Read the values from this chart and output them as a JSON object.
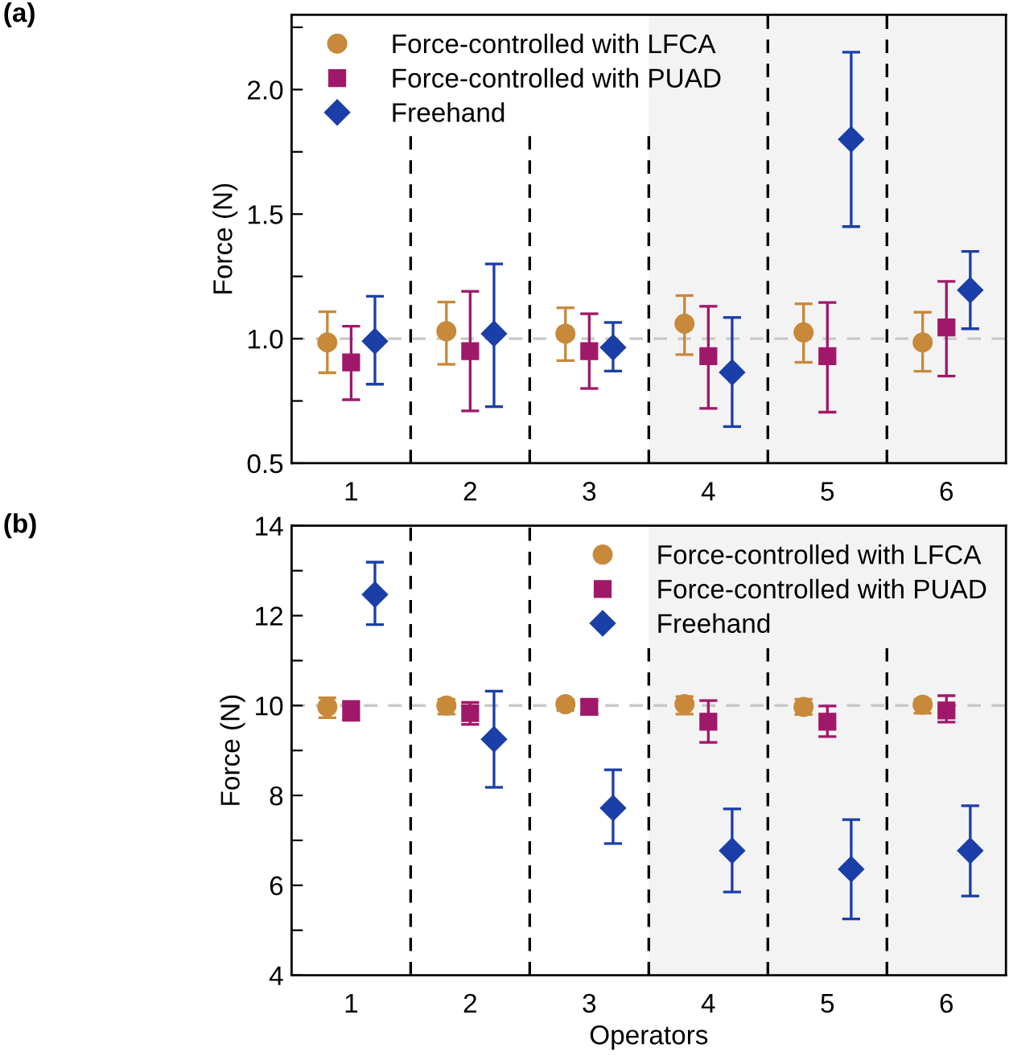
{
  "chart_data": [
    {
      "type": "scatter",
      "ylabel": "Force (N)",
      "annotations": [
        "(a)"
      ],
      "xlim": [
        0.5,
        6.5
      ],
      "xticks": [
        1,
        2,
        3,
        4,
        5,
        6
      ],
      "ylim": [
        0.5,
        2.3
      ],
      "yticks": [
        0.5,
        {
          "value": 0.75,
          "label": null
        },
        {
          "value": 1.0,
          "label": "1.0"
        },
        {
          "value": 1.25,
          "label": null
        },
        1.5,
        {
          "value": 1.75,
          "label": null
        },
        {
          "value": 2.0,
          "label": "2.0"
        },
        {
          "value": 2.25,
          "label": null
        }
      ],
      "grid": false,
      "legend": "top left",
      "ref_lines": [
        {
          "axis": "y",
          "value": 1,
          "color": "#c8c8c8",
          "line_style": "dashed"
        },
        {
          "axis": "x",
          "value": 1.5,
          "color": "#000000",
          "line_style": "dashed"
        },
        {
          "axis": "x",
          "value": 2.5,
          "color": "#000000",
          "line_style": "dashed"
        },
        {
          "axis": "x",
          "value": 3.5,
          "color": "#000000",
          "line_style": "dashed"
        },
        {
          "axis": "x",
          "value": 4.5,
          "color": "#000000",
          "line_style": "dashed"
        },
        {
          "axis": "x",
          "value": 5.5,
          "color": "#000000",
          "line_style": "dashed"
        }
      ],
      "bands": [
        {
          "axis": "x",
          "from": 3.5,
          "to": 6.5,
          "color": "#f3f3f3"
        }
      ],
      "series": [
        {
          "name": "Force-controlled with LFCA",
          "color": "#c8893a",
          "marker": "circle",
          "x": [
            0.8,
            1.8,
            2.8,
            3.8,
            4.8,
            5.8
          ],
          "values": [
            0.985,
            1.03,
            1.02,
            1.06,
            1.025,
            0.985
          ],
          "errors": [
            [
              0.863,
              1.108
            ],
            [
              0.897,
              1.147
            ],
            [
              0.912,
              1.124
            ],
            [
              0.936,
              1.173
            ],
            [
              0.905,
              1.14
            ],
            [
              0.869,
              1.106
            ]
          ]
        },
        {
          "name": "Force-controlled with PUAD",
          "color": "#a0186a",
          "marker": "square",
          "x": [
            1,
            2,
            3,
            4,
            5,
            6
          ],
          "values": [
            0.905,
            0.95,
            0.95,
            0.93,
            0.93,
            1.045
          ],
          "errors": [
            [
              0.755,
              1.05
            ],
            [
              0.71,
              1.19
            ],
            [
              0.8,
              1.1
            ],
            [
              0.72,
              1.13
            ],
            [
              0.705,
              1.145
            ],
            [
              0.85,
              1.23
            ]
          ]
        },
        {
          "name": "Freehand",
          "color": "#1a3fa8",
          "marker": "diamond",
          "x": [
            1.2,
            2.2,
            3.2,
            4.2,
            5.2,
            6.2
          ],
          "values": [
            0.99,
            1.02,
            0.965,
            0.865,
            1.8,
            1.195
          ],
          "errors": [
            [
              0.817,
              1.17
            ],
            [
              0.727,
              1.3
            ],
            [
              0.87,
              1.065
            ],
            [
              0.647,
              1.085
            ],
            [
              1.45,
              2.15
            ],
            [
              1.04,
              1.35
            ]
          ]
        }
      ]
    },
    {
      "type": "scatter",
      "xlabel": "Operators",
      "ylabel": "Force (N)",
      "annotations": [
        "(b)"
      ],
      "xlim": [
        0.5,
        6.5
      ],
      "xticks": [
        1,
        2,
        3,
        4,
        5,
        6
      ],
      "ylim": [
        4,
        14
      ],
      "yticks": [
        4,
        {
          "value": 5,
          "label": null
        },
        6,
        {
          "value": 7,
          "label": null
        },
        8,
        {
          "value": 9,
          "label": null
        },
        10,
        {
          "value": 11,
          "label": null
        },
        12,
        {
          "value": 13,
          "label": null
        },
        14
      ],
      "grid": false,
      "legend": "top right",
      "ref_lines": [
        {
          "axis": "y",
          "value": 10,
          "color": "#c8c8c8",
          "line_style": "dashed"
        },
        {
          "axis": "x",
          "value": 1.5,
          "color": "#000000",
          "line_style": "dashed"
        },
        {
          "axis": "x",
          "value": 2.5,
          "color": "#000000",
          "line_style": "dashed"
        },
        {
          "axis": "x",
          "value": 3.5,
          "color": "#000000",
          "line_style": "dashed"
        },
        {
          "axis": "x",
          "value": 4.5,
          "color": "#000000",
          "line_style": "dashed"
        },
        {
          "axis": "x",
          "value": 5.5,
          "color": "#000000",
          "line_style": "dashed"
        }
      ],
      "bands": [
        {
          "axis": "x",
          "from": 3.5,
          "to": 6.5,
          "color": "#f3f3f3"
        }
      ],
      "series": [
        {
          "name": "Force-controlled with LFCA",
          "color": "#c8893a",
          "marker": "circle",
          "x": [
            0.8,
            1.8,
            2.8,
            3.8,
            4.8,
            5.8
          ],
          "values": [
            9.97,
            10.0,
            10.03,
            10.03,
            9.97,
            10.02
          ],
          "errors": [
            [
              9.73,
              10.17
            ],
            [
              9.81,
              10.14
            ],
            [
              9.89,
              10.13
            ],
            [
              9.81,
              10.2
            ],
            [
              9.8,
              10.14
            ],
            [
              9.83,
              10.13
            ]
          ]
        },
        {
          "name": "Force-controlled with PUAD",
          "color": "#a0186a",
          "marker": "square",
          "x": [
            1,
            2,
            3,
            4,
            5,
            6
          ],
          "values": [
            9.87,
            9.83,
            9.97,
            9.64,
            9.64,
            9.89
          ],
          "errors": [
            [
              9.67,
              10.09
            ],
            [
              9.58,
              10.07
            ],
            [
              9.81,
              10.1
            ],
            [
              9.18,
              10.11
            ],
            [
              9.31,
              9.99
            ],
            [
              9.63,
              10.22
            ]
          ]
        },
        {
          "name": "Freehand",
          "color": "#1a3fa8",
          "marker": "diamond",
          "x": [
            1.2,
            2.2,
            3.2,
            4.2,
            5.2,
            6.2
          ],
          "values": [
            12.47,
            9.25,
            7.72,
            6.77,
            6.36,
            6.77
          ],
          "errors": [
            [
              11.8,
              13.19
            ],
            [
              8.18,
              10.32
            ],
            [
              6.93,
              8.57
            ],
            [
              5.85,
              7.7
            ],
            [
              5.25,
              7.46
            ],
            [
              5.76,
              7.77
            ]
          ]
        }
      ]
    }
  ]
}
